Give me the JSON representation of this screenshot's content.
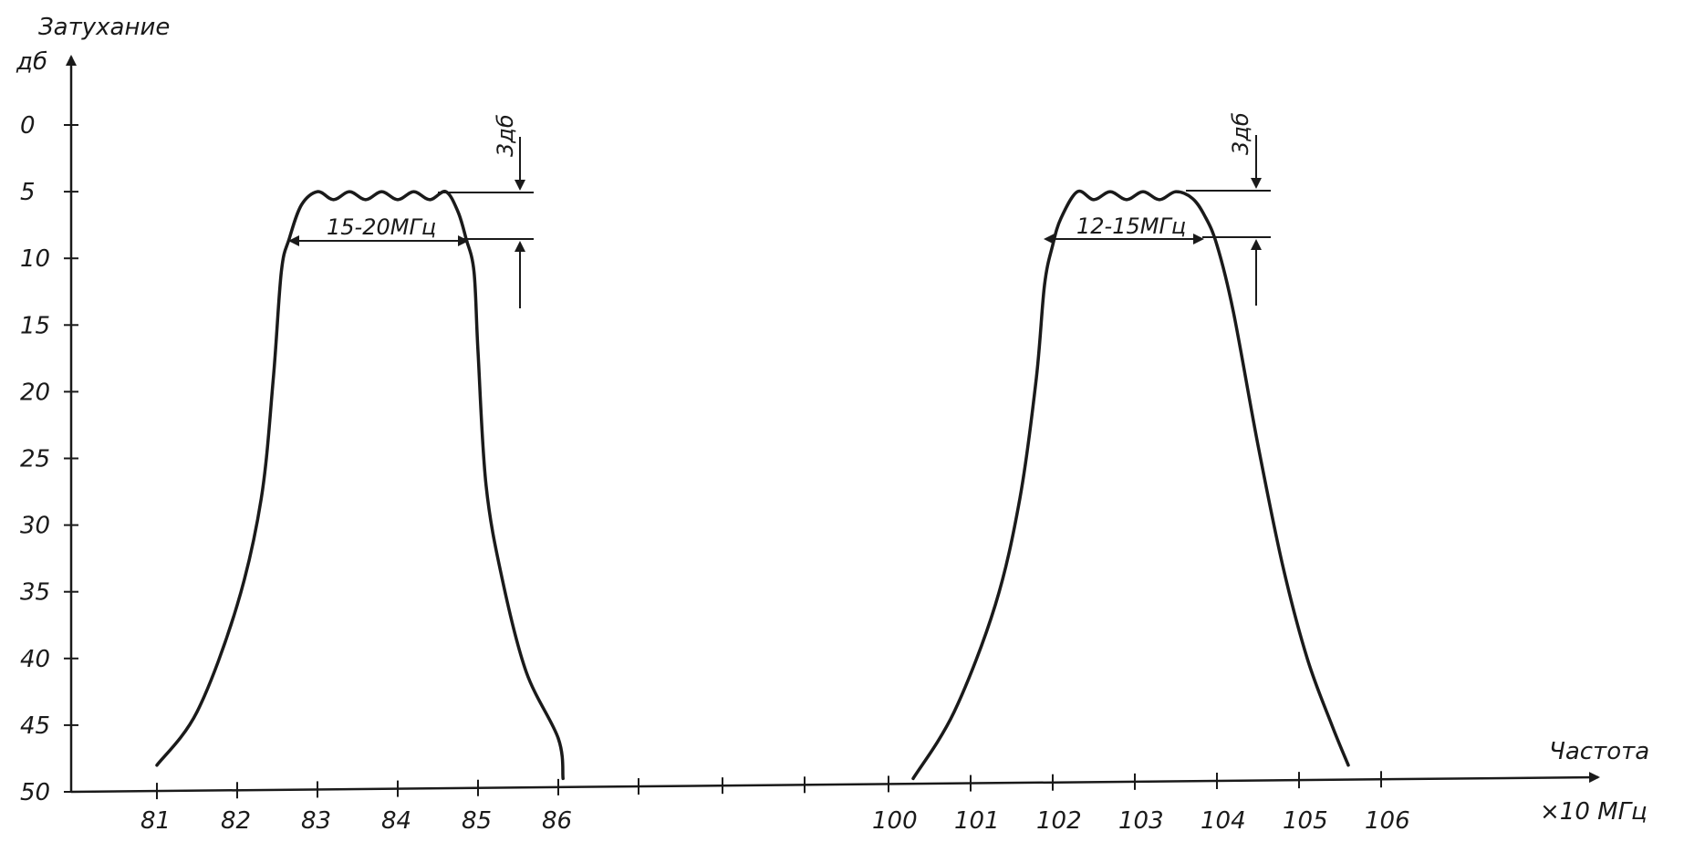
{
  "chart_data": {
    "type": "line",
    "ylabel": "Затухание",
    "yunit": "дб",
    "xlabel": "Частота",
    "xunit": "×10 МГц",
    "y_ticks": [
      "0",
      "5",
      "10",
      "15",
      "20",
      "25",
      "30",
      "35",
      "40",
      "45",
      "50"
    ],
    "x_ticks": [
      "81",
      "82",
      "83",
      "84",
      "85",
      "86",
      "",
      "",
      "",
      "100",
      "101",
      "102",
      "103",
      "104",
      "105",
      "106"
    ],
    "y_inverted": true,
    "ylim": [
      0,
      50
    ],
    "grid": false,
    "series": [
      {
        "x": [
          81.0,
          81.5,
          82.0,
          82.3,
          82.45,
          82.55,
          82.65,
          82.8,
          83.0,
          83.2,
          83.4,
          83.6,
          83.8,
          84.0,
          84.2,
          84.4,
          84.6,
          84.75,
          84.85,
          84.95,
          85.0,
          85.1,
          85.3,
          85.6,
          86.0,
          86.2
        ],
        "y": [
          48,
          44,
          36,
          28,
          19,
          11,
          8.5,
          6,
          5,
          5.6,
          5,
          5.6,
          5,
          5.6,
          5,
          5.6,
          5,
          6.5,
          8.5,
          11,
          17,
          27,
          34,
          41,
          46,
          49
        ]
      },
      {
        "x": [
          100.3,
          100.8,
          101.3,
          101.6,
          101.8,
          101.9,
          102.0,
          102.1,
          102.3,
          102.5,
          102.7,
          102.9,
          103.1,
          103.3,
          103.5,
          103.7,
          103.85,
          104.0,
          104.2,
          104.5,
          104.8,
          105.1,
          105.4,
          105.6
        ],
        "y": [
          49,
          44,
          36,
          28,
          19,
          12,
          9,
          7,
          5,
          5.6,
          5,
          5.6,
          5,
          5.6,
          5,
          5.5,
          6.8,
          9,
          14,
          24,
          33,
          40,
          45,
          48
        ]
      }
    ],
    "annotations": {
      "left_width": "15-20МГц",
      "left_level": "3дб",
      "right_width": "12-15МГц",
      "right_level": "3дб"
    }
  }
}
